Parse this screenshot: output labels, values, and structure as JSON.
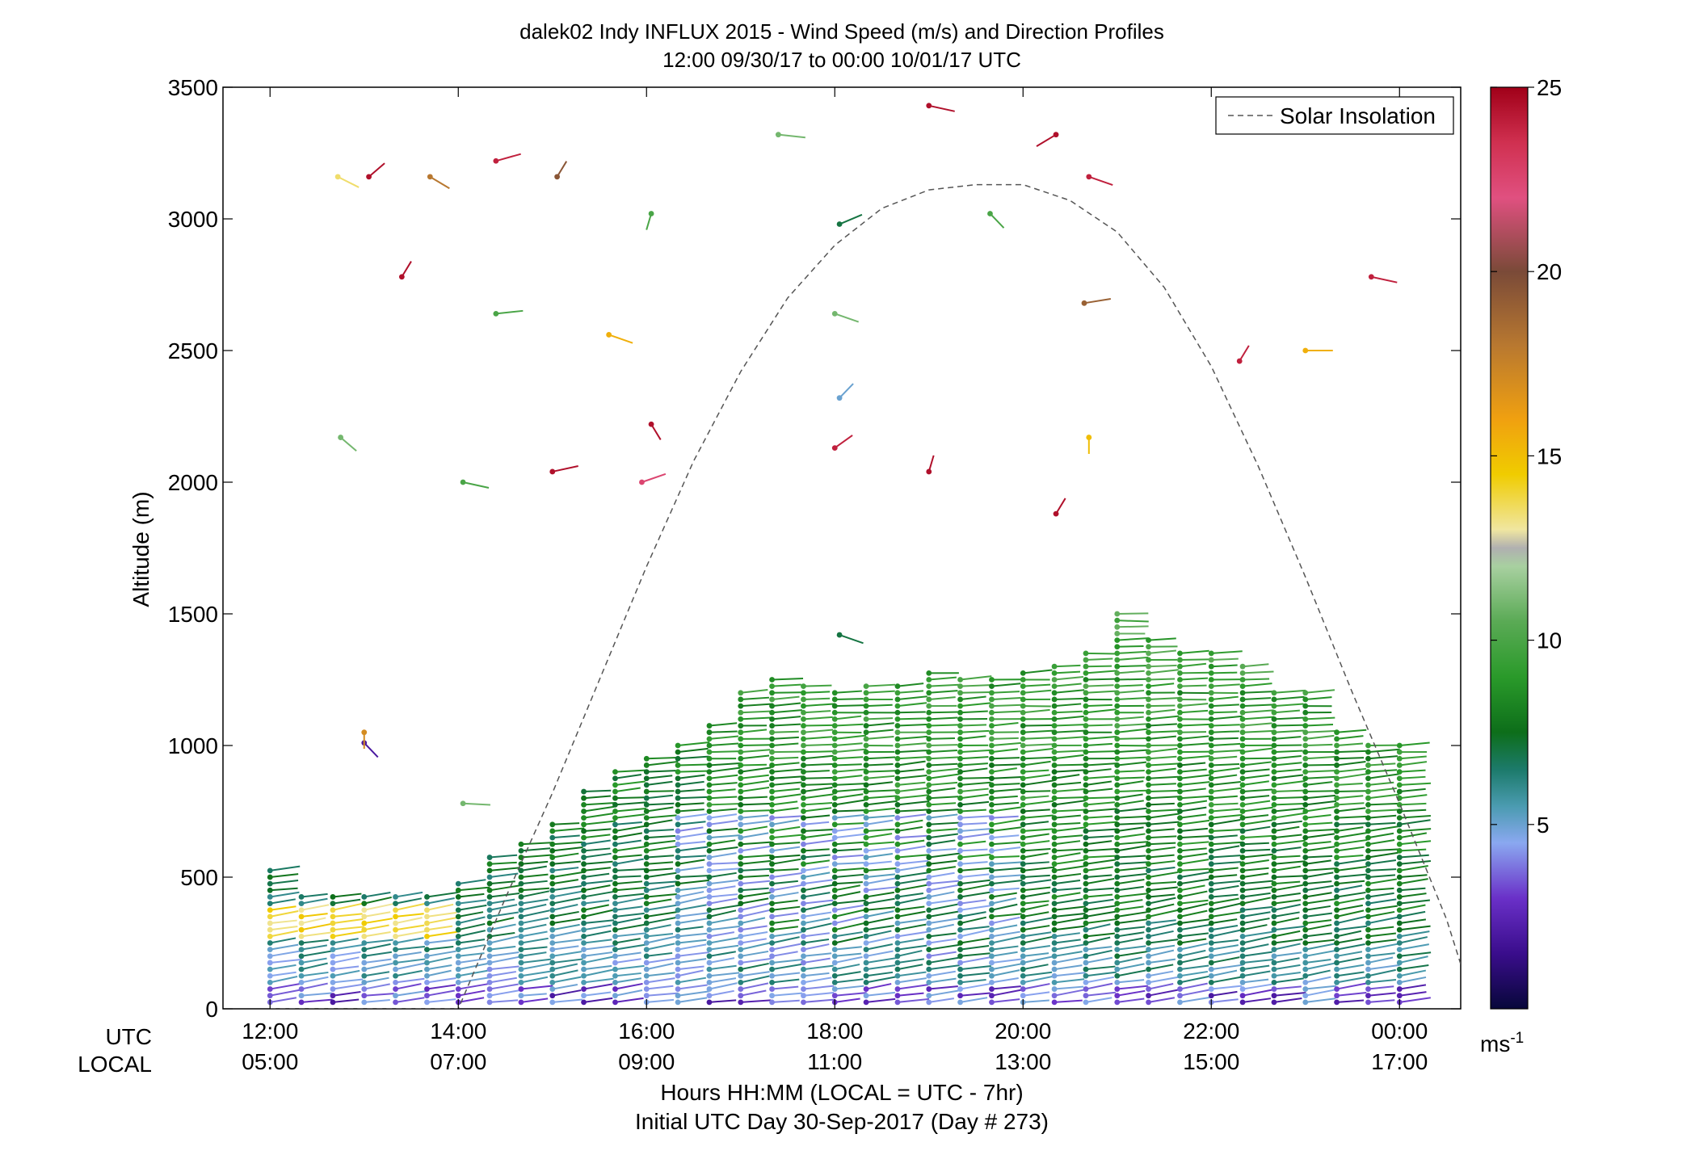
{
  "chart_data": {
    "type": "scatter",
    "title": "dalek02 Indy INFLUX 2015 - Wind Speed (m/s) and Direction Profiles",
    "subtitle": "12:00 09/30/17 to 00:00 10/01/17  UTC",
    "ylabel": "Altitude (m)",
    "xlabel": "Hours HH:MM  (LOCAL = UTC - 7hr)",
    "xlabel2": "Initial UTC Day 30-Sep-2017 (Day # 273)",
    "x_row_labels": [
      "UTC",
      "LOCAL"
    ],
    "xlim": [
      11.5,
      24.65
    ],
    "ylim": [
      0,
      3500
    ],
    "x_ticks": [
      12,
      14,
      16,
      18,
      20,
      22,
      24
    ],
    "x_tick_labels_utc": [
      "12:00",
      "14:00",
      "16:00",
      "18:00",
      "20:00",
      "22:00",
      "00:00"
    ],
    "x_tick_labels_local": [
      "05:00",
      "07:00",
      "09:00",
      "11:00",
      "13:00",
      "15:00",
      "17:00"
    ],
    "y_ticks": [
      0,
      500,
      1000,
      1500,
      2000,
      2500,
      3000,
      3500
    ],
    "y_tick_labels": [
      "0",
      "500",
      "1000",
      "1500",
      "2000",
      "2500",
      "3000",
      "3500"
    ],
    "grid": false,
    "legend": {
      "placement": "top-right",
      "entries": [
        "Solar Insolation"
      ]
    },
    "colorbar": {
      "min": 0,
      "max": 25,
      "ticks": [
        5,
        10,
        15,
        20,
        25
      ],
      "tick_labels": [
        "5",
        "10",
        "15",
        "20",
        "25"
      ],
      "unit_label": "ms",
      "unit_exponent": "-1"
    },
    "solar_insolation": {
      "x": [
        12.0,
        12.5,
        13.0,
        13.5,
        14.0,
        14.5,
        15.0,
        15.5,
        16.0,
        16.5,
        17.0,
        17.5,
        18.0,
        18.5,
        19.0,
        19.5,
        20.0,
        20.5,
        21.0,
        21.5,
        22.0,
        22.5,
        23.0,
        23.5,
        24.0,
        24.5,
        24.65
      ],
      "y": [
        0,
        0,
        0,
        0,
        0,
        420,
        820,
        1250,
        1680,
        2080,
        2420,
        2700,
        2900,
        3040,
        3110,
        3130,
        3130,
        3070,
        2950,
        2740,
        2440,
        2060,
        1640,
        1200,
        780,
        340,
        170
      ]
    },
    "profile_times": [
      12.0,
      12.333,
      12.667,
      13.0,
      13.333,
      13.667,
      14.0,
      14.333,
      14.667,
      15.0,
      15.333,
      15.667,
      16.0,
      16.333,
      16.667,
      17.0,
      17.333,
      17.667,
      18.0,
      18.333,
      18.667,
      19.0,
      19.333,
      19.667,
      20.0,
      20.333,
      20.667,
      21.0,
      21.333,
      21.667,
      22.0,
      22.333,
      22.667,
      23.0,
      23.333,
      23.667,
      24.0
    ],
    "profile_top_heights": [
      525,
      440,
      430,
      430,
      430,
      430,
      490,
      590,
      640,
      700,
      830,
      900,
      950,
      1000,
      1090,
      1200,
      1250,
      1230,
      1210,
      1230,
      1240,
      1280,
      1260,
      1260,
      1280,
      1300,
      1350,
      1520,
      1400,
      1370,
      1350,
      1300,
      1220,
      1200,
      1050,
      1020,
      1000
    ],
    "profile_heights_step": 25,
    "wind_speed_layers": {
      "altitudes": [
        0,
        100,
        200,
        300,
        400,
        500,
        600,
        700,
        800,
        900,
        1000,
        1100,
        1200,
        1300,
        1400,
        1500
      ],
      "speeds": [
        3.5,
        5.0,
        5.5,
        6.5,
        7.0,
        7.0,
        7.5,
        7.5,
        8.0,
        8.0,
        8.5,
        8.5,
        8.5,
        9.0,
        9.0,
        9.5
      ],
      "direction_deg": [
        260,
        255,
        255,
        255,
        255,
        260,
        260,
        260,
        262,
        262,
        265,
        265,
        265,
        265,
        268,
        270
      ]
    },
    "isolated_points": [
      {
        "t": 12.72,
        "alt": 3160,
        "speed": 13.5,
        "dir": 310
      },
      {
        "t": 13.05,
        "alt": 3160,
        "speed": 24.5,
        "dir": 215
      },
      {
        "t": 13.7,
        "alt": 3160,
        "speed": 18.0,
        "dir": 315
      },
      {
        "t": 14.4,
        "alt": 3220,
        "speed": 24.0,
        "dir": 245
      },
      {
        "t": 15.05,
        "alt": 3160,
        "speed": 19.5,
        "dir": 200
      },
      {
        "t": 16.05,
        "alt": 3020,
        "speed": 10.0,
        "dir": 10
      },
      {
        "t": 17.4,
        "alt": 3320,
        "speed": 11.0,
        "dir": 280
      },
      {
        "t": 18.05,
        "alt": 2980,
        "speed": 7.0,
        "dir": 235
      },
      {
        "t": 19.0,
        "alt": 3430,
        "speed": 24.5,
        "dir": 290
      },
      {
        "t": 19.65,
        "alt": 3020,
        "speed": 10.0,
        "dir": 330
      },
      {
        "t": 20.35,
        "alt": 3320,
        "speed": 24.5,
        "dir": 45
      },
      {
        "t": 20.7,
        "alt": 3160,
        "speed": 24.0,
        "dir": 300
      },
      {
        "t": 13.4,
        "alt": 2780,
        "speed": 24.5,
        "dir": 200
      },
      {
        "t": 14.4,
        "alt": 2640,
        "speed": 10.0,
        "dir": 260
      },
      {
        "t": 15.6,
        "alt": 2560,
        "speed": 15.5,
        "dir": 300
      },
      {
        "t": 18.0,
        "alt": 2640,
        "speed": 11.0,
        "dir": 300
      },
      {
        "t": 20.65,
        "alt": 2680,
        "speed": 19.0,
        "dir": 255
      },
      {
        "t": 23.7,
        "alt": 2780,
        "speed": 24.0,
        "dir": 290
      },
      {
        "t": 22.3,
        "alt": 2460,
        "speed": 24.0,
        "dir": 200
      },
      {
        "t": 23.0,
        "alt": 2500,
        "speed": 15.5,
        "dir": 270
      },
      {
        "t": 12.75,
        "alt": 2170,
        "speed": 11.0,
        "dir": 325
      },
      {
        "t": 16.05,
        "alt": 2220,
        "speed": 24.5,
        "dir": 340
      },
      {
        "t": 18.05,
        "alt": 2320,
        "speed": 5.0,
        "dir": 210
      },
      {
        "t": 14.05,
        "alt": 2000,
        "speed": 10.0,
        "dir": 290
      },
      {
        "t": 15.0,
        "alt": 2040,
        "speed": 24.5,
        "dir": 250
      },
      {
        "t": 15.95,
        "alt": 2000,
        "speed": 22.5,
        "dir": 240
      },
      {
        "t": 18.0,
        "alt": 2130,
        "speed": 24.0,
        "dir": 220
      },
      {
        "t": 19.0,
        "alt": 2040,
        "speed": 24.5,
        "dir": 190
      },
      {
        "t": 20.35,
        "alt": 1880,
        "speed": 24.5,
        "dir": 200
      },
      {
        "t": 20.7,
        "alt": 2170,
        "speed": 15.0,
        "dir": 0
      },
      {
        "t": 18.05,
        "alt": 1420,
        "speed": 7.0,
        "dir": 300
      },
      {
        "t": 13.0,
        "alt": 1010,
        "speed": 2.0,
        "dir": 330
      },
      {
        "t": 13.0,
        "alt": 1050,
        "speed": 17.0,
        "dir": 0
      },
      {
        "t": 14.05,
        "alt": 780,
        "speed": 11.0,
        "dir": 275
      }
    ]
  }
}
